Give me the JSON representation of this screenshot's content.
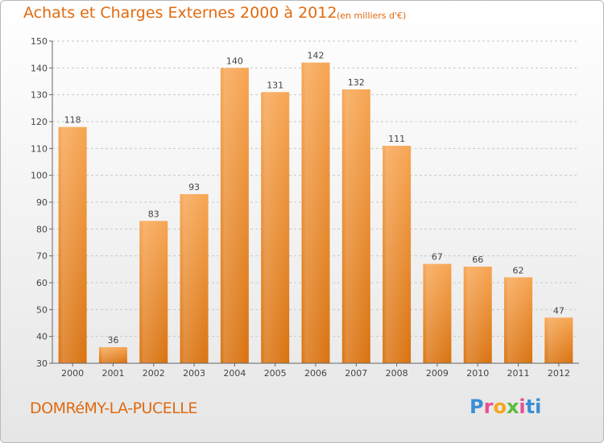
{
  "header": {
    "title": "Achats et Charges Externes 2000 à 2012",
    "subtitle": "(en milliers d'€)"
  },
  "footer": {
    "commune": "DOMRéMY-LA-PUCELLE",
    "logo": "Proxiti"
  },
  "colors": {
    "accent": "#e06a10",
    "bar_top": "#f7a552",
    "bar_bottom": "#d9720f",
    "grid": "#c8c8c8"
  },
  "chart_data": {
    "type": "bar",
    "title": "Achats et Charges Externes 2000 à 2012",
    "subtitle": "(en milliers d'€)",
    "categories": [
      "2000",
      "2001",
      "2002",
      "2003",
      "2004",
      "2005",
      "2006",
      "2007",
      "2008",
      "2009",
      "2010",
      "2011",
      "2012"
    ],
    "values": [
      118,
      36,
      83,
      93,
      140,
      131,
      142,
      132,
      111,
      67,
      66,
      62,
      47
    ],
    "ylim": [
      30,
      150
    ],
    "yticks": [
      30,
      40,
      50,
      60,
      70,
      80,
      90,
      100,
      110,
      120,
      130,
      140,
      150
    ],
    "grid": true,
    "show_data_labels": true
  }
}
